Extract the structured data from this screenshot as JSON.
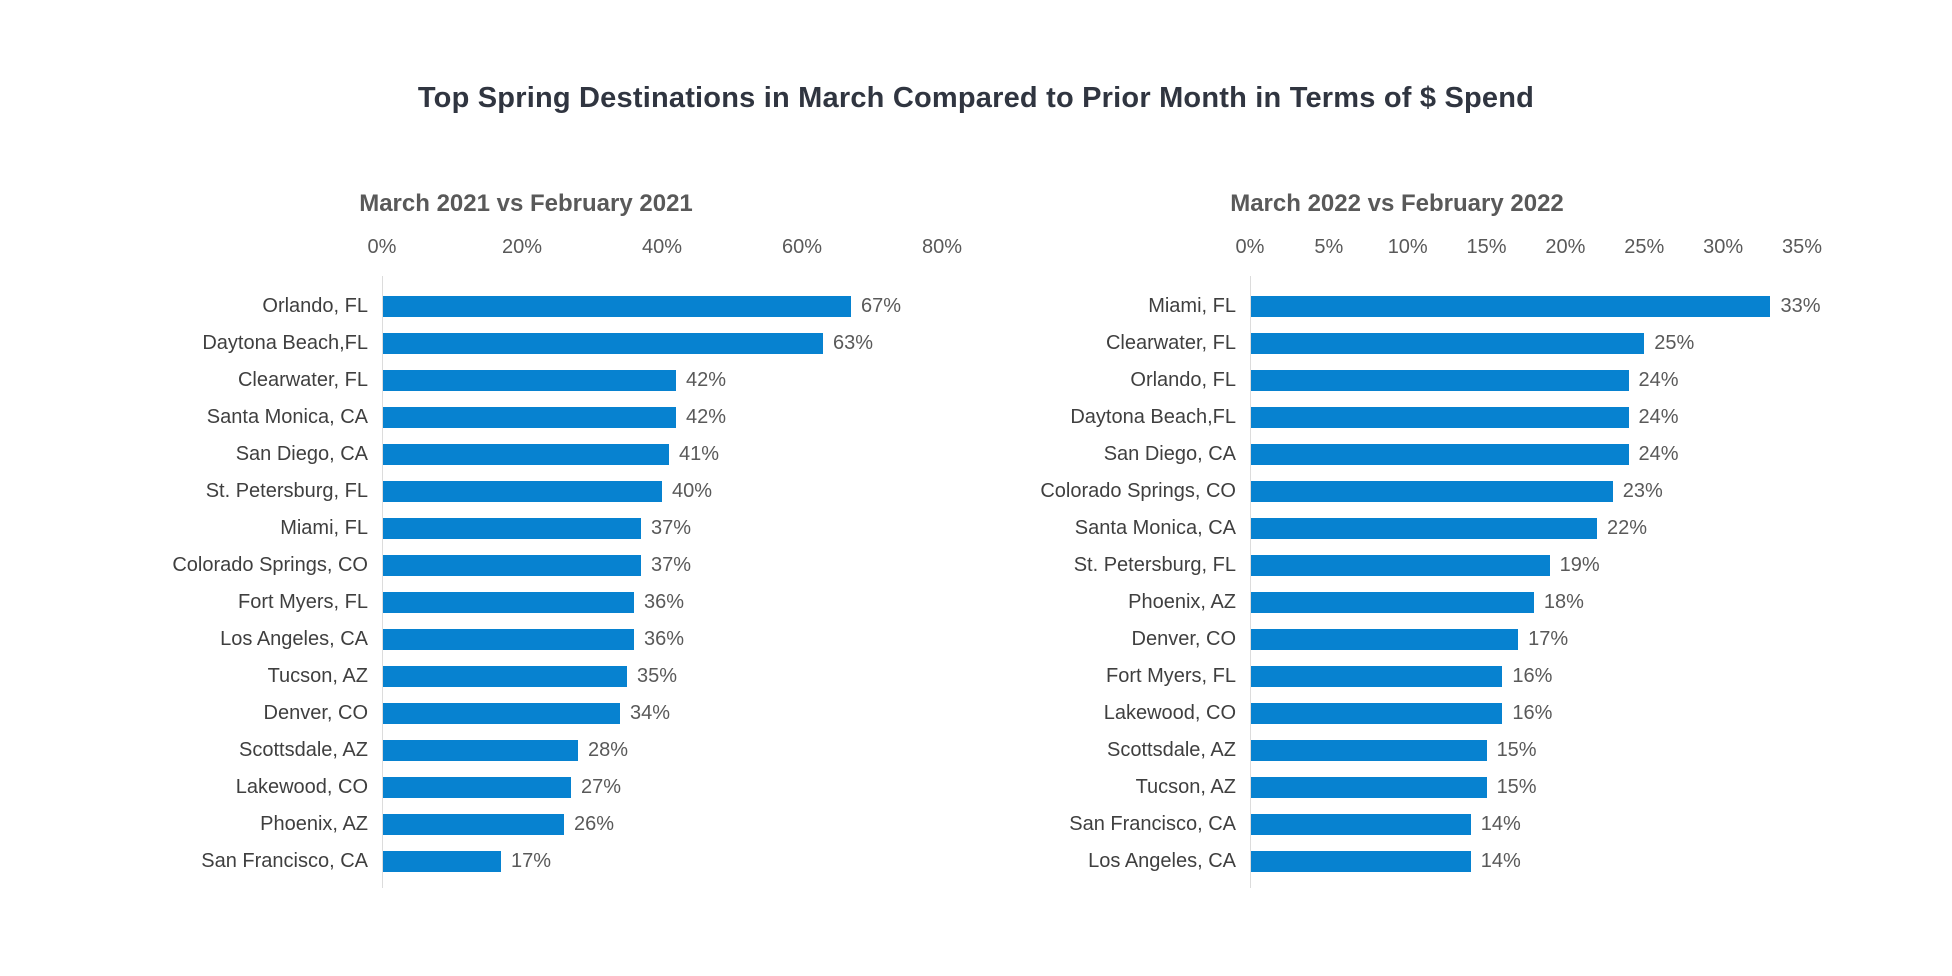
{
  "page": {
    "title": "Top Spring Destinations in March Compared to Prior Month in Terms of $ Spend"
  },
  "colors": {
    "bar": "#0782d0",
    "main_title": "#303540",
    "chart_title": "#595959",
    "category_label": "#3f3f3f",
    "value_label": "#595959",
    "tick_label": "#595959",
    "axis_line": "#dcdcdc",
    "background": "#ffffff"
  },
  "chart_data": [
    {
      "type": "bar",
      "orientation": "horizontal",
      "title": "March 2021 vs February 2021",
      "xlabel": "",
      "ylabel": "",
      "xlim": [
        0,
        80
      ],
      "grid": false,
      "legend": false,
      "axis_ticks": [
        {
          "label": "0%",
          "value": 0
        },
        {
          "label": "20%",
          "value": 20
        },
        {
          "label": "40%",
          "value": 40
        },
        {
          "label": "60%",
          "value": 60
        },
        {
          "label": "80%",
          "value": 80
        }
      ],
      "categories": [
        "Orlando, FL",
        "Daytona Beach,FL",
        "Clearwater, FL",
        "Santa Monica, CA",
        "San Diego, CA",
        "St. Petersburg, FL",
        "Miami, FL",
        "Colorado Springs, CO",
        "Fort Myers, FL",
        "Los Angeles, CA",
        "Tucson, AZ",
        "Denver, CO",
        "Scottsdale, AZ",
        "Lakewood, CO",
        "Phoenix, AZ",
        "San Francisco, CA"
      ],
      "values": [
        67,
        63,
        42,
        42,
        41,
        40,
        37,
        37,
        36,
        36,
        35,
        34,
        28,
        27,
        26,
        17
      ],
      "value_labels": [
        "67%",
        "63%",
        "42%",
        "42%",
        "41%",
        "40%",
        "37%",
        "37%",
        "36%",
        "36%",
        "35%",
        "34%",
        "28%",
        "27%",
        "26%",
        "17%"
      ]
    },
    {
      "type": "bar",
      "orientation": "horizontal",
      "title": "March 2022 vs February 2022",
      "xlabel": "",
      "ylabel": "",
      "xlim": [
        0,
        35
      ],
      "grid": false,
      "legend": false,
      "axis_ticks": [
        {
          "label": "0%",
          "value": 0
        },
        {
          "label": "5%",
          "value": 5
        },
        {
          "label": "10%",
          "value": 10
        },
        {
          "label": "15%",
          "value": 15
        },
        {
          "label": "20%",
          "value": 20
        },
        {
          "label": "25%",
          "value": 25
        },
        {
          "label": "30%",
          "value": 30
        },
        {
          "label": "35%",
          "value": 35
        }
      ],
      "categories": [
        "Miami, FL",
        "Clearwater, FL",
        "Orlando, FL",
        "Daytona Beach,FL",
        "San Diego, CA",
        "Colorado Springs, CO",
        "Santa Monica, CA",
        "St. Petersburg, FL",
        "Phoenix, AZ",
        "Denver, CO",
        "Fort Myers, FL",
        "Lakewood, CO",
        "Scottsdale, AZ",
        "Tucson, AZ",
        "San Francisco, CA",
        "Los Angeles, CA"
      ],
      "values": [
        33,
        25,
        24,
        24,
        24,
        23,
        22,
        19,
        18,
        17,
        16,
        16,
        15,
        15,
        14,
        14
      ],
      "value_labels": [
        "33%",
        "25%",
        "24%",
        "24%",
        "24%",
        "23%",
        "22%",
        "19%",
        "18%",
        "17%",
        "16%",
        "16%",
        "15%",
        "15%",
        "14%",
        "14%"
      ]
    }
  ]
}
